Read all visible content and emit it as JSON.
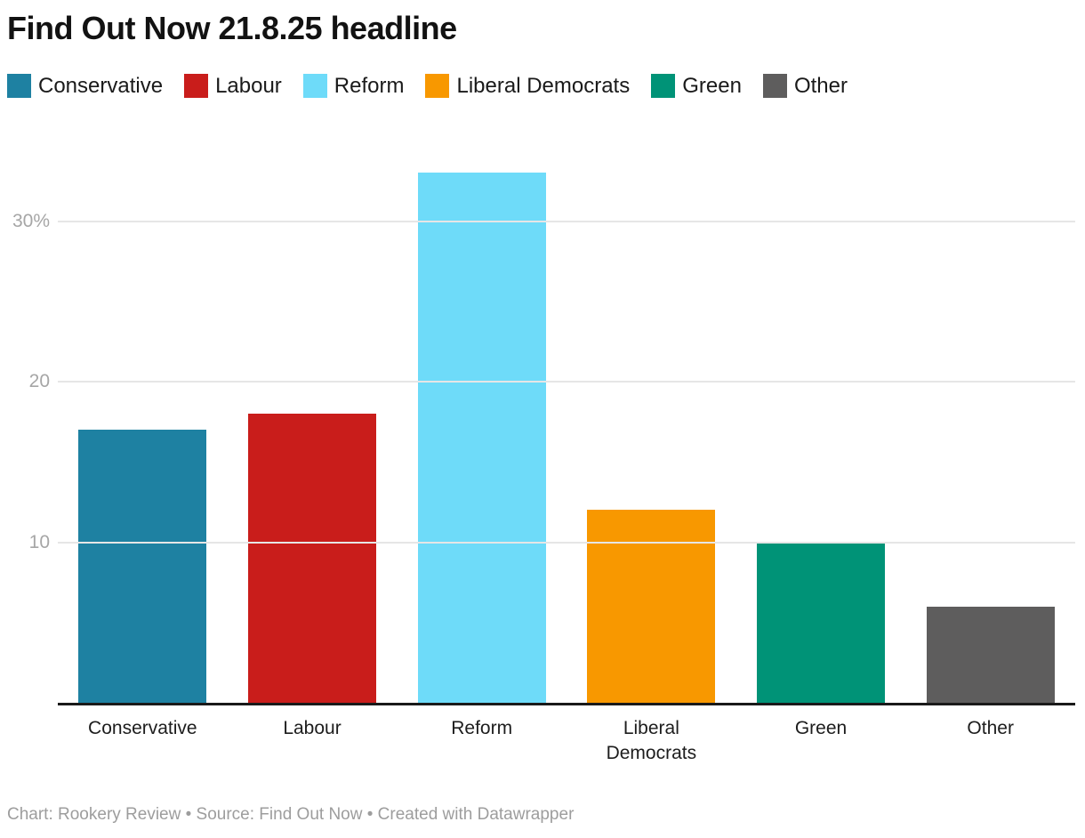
{
  "header": {
    "title": "Find Out Now 21.8.25 headline"
  },
  "footer": {
    "text": "Chart: Rookery Review • Source: Find Out Now • Created with Datawrapper"
  },
  "chart_data": {
    "type": "bar",
    "title": "Find Out Now 21.8.25 headline",
    "categories": [
      "Conservative",
      "Labour",
      "Reform",
      "Liberal Democrats",
      "Green",
      "Other"
    ],
    "values": [
      17,
      18,
      33,
      12,
      10,
      6
    ],
    "value_unit": "%",
    "colors": [
      "#1e81a2",
      "#c91d1b",
      "#6edbf9",
      "#f89800",
      "#009377",
      "#5e5d5d"
    ],
    "ylim": [
      0,
      35.5
    ],
    "yticks": [
      {
        "value": 10,
        "label": "10"
      },
      {
        "value": 20,
        "label": "20"
      },
      {
        "value": 30,
        "label": "30%"
      }
    ],
    "grid": true,
    "grid_color": "#e6e6e6",
    "axis_line_color": "#1a1a1a",
    "tick_label_color": "#a6a6a6",
    "legend_position": "top-left",
    "legend_entries": [
      "Conservative",
      "Labour",
      "Reform",
      "Liberal Democrats",
      "Green",
      "Other"
    ]
  }
}
